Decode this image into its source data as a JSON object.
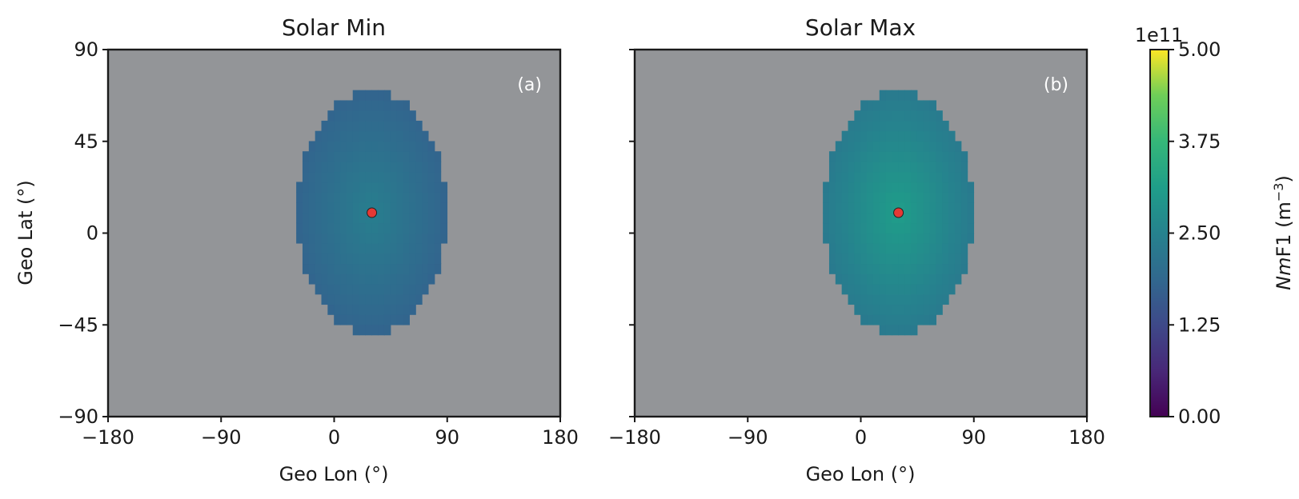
{
  "chart_data": [
    {
      "type": "heatmap",
      "title": "Solar Min",
      "panel_label": "(a)",
      "xlabel": "Geo Lon (°)",
      "ylabel": "Geo Lat (°)",
      "xlim": [
        -180,
        180
      ],
      "ylim": [
        -90,
        90
      ],
      "xticks": [
        "−180",
        "−90",
        "0",
        "90",
        "180"
      ],
      "yticks": [
        "−90",
        "−45",
        "0",
        "45",
        "90"
      ],
      "background_color": "#939598",
      "region_extent": {
        "lon": [
          -30,
          90
        ],
        "lat": [
          -50,
          70
        ]
      },
      "center_marker": {
        "lon": 30,
        "lat": 10,
        "color": "#e53935"
      },
      "field": {
        "center_lon": 30,
        "center_lat": 10,
        "center_value": 240000000000.0,
        "edge_value": 180000000000.0
      }
    },
    {
      "type": "heatmap",
      "title": "Solar Max",
      "panel_label": "(b)",
      "xlabel": "Geo Lon (°)",
      "ylabel": "",
      "xlim": [
        -180,
        180
      ],
      "ylim": [
        -90,
        90
      ],
      "xticks": [
        "−180",
        "−90",
        "0",
        "90",
        "180"
      ],
      "yticks": [],
      "background_color": "#939598",
      "region_extent": {
        "lon": [
          -30,
          90
        ],
        "lat": [
          -50,
          70
        ]
      },
      "center_marker": {
        "lon": 30,
        "lat": 10,
        "color": "#e53935"
      },
      "field": {
        "center_lon": 30,
        "center_lat": 10,
        "center_value": 310000000000.0,
        "edge_value": 230000000000.0
      }
    }
  ],
  "colorbar": {
    "colormap": "viridis",
    "range": [
      0,
      500000000000.0
    ],
    "exponent_label": "1e11",
    "ticks": [
      "0.00",
      "1.25",
      "2.50",
      "3.75",
      "5.00"
    ],
    "label_italic": "Nm",
    "label_rest": "F1 (m",
    "label_sup": "−3",
    "label_close": ")"
  }
}
